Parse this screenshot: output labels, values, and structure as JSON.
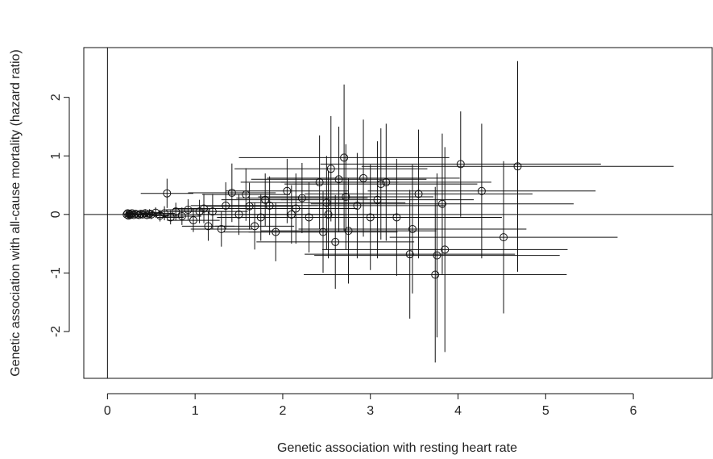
{
  "chart_data": {
    "type": "scatter",
    "title": "",
    "xlabel": "Genetic association with resting heart rate",
    "ylabel": "Genetic association with all-cause mortality (hazard ratio)",
    "xlim": [
      -0.27,
      6.9
    ],
    "ylim": [
      -2.8,
      2.85
    ],
    "x_ticks": [
      0,
      1,
      2,
      3,
      4,
      5,
      6
    ],
    "y_ticks": [
      -2,
      -1,
      0,
      1,
      2
    ],
    "grid": false,
    "reference_lines": {
      "x": 0,
      "y": 0
    },
    "error_bars": true,
    "points": [
      {
        "x": 0.22,
        "y": 0.0,
        "xerr": 0.02,
        "yerr": 0.03
      },
      {
        "x": 0.23,
        "y": 0.02,
        "xerr": 0.02,
        "yerr": 0.03
      },
      {
        "x": 0.24,
        "y": -0.02,
        "xerr": 0.02,
        "yerr": 0.03
      },
      {
        "x": 0.25,
        "y": 0.01,
        "xerr": 0.02,
        "yerr": 0.04
      },
      {
        "x": 0.26,
        "y": -0.01,
        "xerr": 0.03,
        "yerr": 0.04
      },
      {
        "x": 0.27,
        "y": 0.0,
        "xerr": 0.03,
        "yerr": 0.04
      },
      {
        "x": 0.28,
        "y": 0.02,
        "xerr": 0.03,
        "yerr": 0.04
      },
      {
        "x": 0.3,
        "y": -0.01,
        "xerr": 0.03,
        "yerr": 0.04
      },
      {
        "x": 0.32,
        "y": 0.01,
        "xerr": 0.04,
        "yerr": 0.05
      },
      {
        "x": 0.34,
        "y": 0.0,
        "xerr": 0.04,
        "yerr": 0.05
      },
      {
        "x": 0.36,
        "y": -0.01,
        "xerr": 0.05,
        "yerr": 0.05
      },
      {
        "x": 0.38,
        "y": 0.01,
        "xerr": 0.05,
        "yerr": 0.06
      },
      {
        "x": 0.4,
        "y": 0.0,
        "xerr": 0.05,
        "yerr": 0.06
      },
      {
        "x": 0.43,
        "y": 0.02,
        "xerr": 0.06,
        "yerr": 0.07
      },
      {
        "x": 0.45,
        "y": -0.01,
        "xerr": 0.06,
        "yerr": 0.07
      },
      {
        "x": 0.48,
        "y": 0.01,
        "xerr": 0.07,
        "yerr": 0.08
      },
      {
        "x": 0.5,
        "y": 0.0,
        "xerr": 0.07,
        "yerr": 0.08
      },
      {
        "x": 0.55,
        "y": 0.03,
        "xerr": 0.08,
        "yerr": 0.09
      },
      {
        "x": 0.6,
        "y": -0.02,
        "xerr": 0.1,
        "yerr": 0.1
      },
      {
        "x": 0.65,
        "y": 0.02,
        "xerr": 0.12,
        "yerr": 0.12
      },
      {
        "x": 0.68,
        "y": 0.36,
        "xerr": 0.3,
        "yerr": 0.25
      },
      {
        "x": 0.72,
        "y": -0.05,
        "xerr": 0.15,
        "yerr": 0.12
      },
      {
        "x": 0.78,
        "y": 0.05,
        "xerr": 0.2,
        "yerr": 0.15
      },
      {
        "x": 0.85,
        "y": -0.03,
        "xerr": 0.22,
        "yerr": 0.15
      },
      {
        "x": 0.92,
        "y": 0.08,
        "xerr": 0.25,
        "yerr": 0.18
      },
      {
        "x": 0.98,
        "y": -0.1,
        "xerr": 0.3,
        "yerr": 0.2
      },
      {
        "x": 1.05,
        "y": 0.05,
        "xerr": 0.3,
        "yerr": 0.2
      },
      {
        "x": 1.1,
        "y": 0.1,
        "xerr": 0.35,
        "yerr": 0.25
      },
      {
        "x": 1.15,
        "y": -0.2,
        "xerr": 0.3,
        "yerr": 0.25
      },
      {
        "x": 1.2,
        "y": 0.05,
        "xerr": 0.4,
        "yerr": 0.3
      },
      {
        "x": 1.3,
        "y": -0.25,
        "xerr": 0.35,
        "yerr": 0.3
      },
      {
        "x": 1.35,
        "y": 0.15,
        "xerr": 0.4,
        "yerr": 0.4
      },
      {
        "x": 1.42,
        "y": 0.37,
        "xerr": 0.5,
        "yerr": 0.5
      },
      {
        "x": 1.5,
        "y": 0.0,
        "xerr": 0.45,
        "yerr": 0.35
      },
      {
        "x": 1.58,
        "y": 0.34,
        "xerr": 0.5,
        "yerr": 0.45
      },
      {
        "x": 1.62,
        "y": 0.14,
        "xerr": 0.5,
        "yerr": 0.4
      },
      {
        "x": 1.68,
        "y": -0.2,
        "xerr": 0.45,
        "yerr": 0.4
      },
      {
        "x": 1.75,
        "y": -0.05,
        "xerr": 0.5,
        "yerr": 0.4
      },
      {
        "x": 1.8,
        "y": 0.25,
        "xerr": 0.5,
        "yerr": 0.45
      },
      {
        "x": 1.85,
        "y": 0.15,
        "xerr": 0.55,
        "yerr": 0.5
      },
      {
        "x": 1.92,
        "y": -0.3,
        "xerr": 0.6,
        "yerr": 0.5
      },
      {
        "x": 2.05,
        "y": 0.4,
        "xerr": 0.7,
        "yerr": 0.55
      },
      {
        "x": 2.1,
        "y": 0.0,
        "xerr": 0.6,
        "yerr": 0.5
      },
      {
        "x": 2.15,
        "y": 0.1,
        "xerr": 0.7,
        "yerr": 0.6
      },
      {
        "x": 2.22,
        "y": 0.28,
        "xerr": 0.75,
        "yerr": 0.6
      },
      {
        "x": 2.3,
        "y": -0.05,
        "xerr": 0.7,
        "yerr": 0.6
      },
      {
        "x": 2.42,
        "y": 0.55,
        "xerr": 0.9,
        "yerr": 0.8
      },
      {
        "x": 2.46,
        "y": -0.3,
        "xerr": 0.85,
        "yerr": 0.7
      },
      {
        "x": 2.5,
        "y": 0.2,
        "xerr": 0.9,
        "yerr": 0.8
      },
      {
        "x": 2.52,
        "y": 0.0,
        "xerr": 0.8,
        "yerr": 0.75
      },
      {
        "x": 2.55,
        "y": 0.78,
        "xerr": 1.1,
        "yerr": 0.9
      },
      {
        "x": 2.6,
        "y": -0.47,
        "xerr": 0.9,
        "yerr": 0.8
      },
      {
        "x": 2.64,
        "y": 0.6,
        "xerr": 1.0,
        "yerr": 0.9
      },
      {
        "x": 2.7,
        "y": 0.97,
        "xerr": 1.2,
        "yerr": 1.25
      },
      {
        "x": 2.72,
        "y": 0.3,
        "xerr": 1.0,
        "yerr": 0.9
      },
      {
        "x": 2.75,
        "y": -0.28,
        "xerr": 1.0,
        "yerr": 0.9
      },
      {
        "x": 2.85,
        "y": 0.15,
        "xerr": 1.0,
        "yerr": 0.9
      },
      {
        "x": 2.92,
        "y": 0.62,
        "xerr": 1.1,
        "yerr": 1.0
      },
      {
        "x": 3.0,
        "y": -0.05,
        "xerr": 1.0,
        "yerr": 0.9
      },
      {
        "x": 3.08,
        "y": 0.25,
        "xerr": 1.1,
        "yerr": 1.0
      },
      {
        "x": 3.12,
        "y": 0.52,
        "xerr": 1.1,
        "yerr": 0.95
      },
      {
        "x": 3.18,
        "y": 0.55,
        "xerr": 1.2,
        "yerr": 1.0
      },
      {
        "x": 3.3,
        "y": -0.05,
        "xerr": 1.2,
        "yerr": 1.0
      },
      {
        "x": 3.45,
        "y": -0.68,
        "xerr": 1.2,
        "yerr": 1.1
      },
      {
        "x": 3.48,
        "y": -0.25,
        "xerr": 1.3,
        "yerr": 1.1
      },
      {
        "x": 3.55,
        "y": 0.35,
        "xerr": 1.3,
        "yerr": 1.1
      },
      {
        "x": 3.74,
        "y": -1.03,
        "xerr": 1.5,
        "yerr": 1.5
      },
      {
        "x": 3.76,
        "y": -0.7,
        "xerr": 1.4,
        "yerr": 1.4
      },
      {
        "x": 3.82,
        "y": 0.18,
        "xerr": 1.5,
        "yerr": 1.2
      },
      {
        "x": 3.85,
        "y": -0.6,
        "xerr": 1.4,
        "yerr": 1.75
      },
      {
        "x": 4.03,
        "y": 0.86,
        "xerr": 1.6,
        "yerr": 0.9
      },
      {
        "x": 4.27,
        "y": 0.4,
        "xerr": 1.3,
        "yerr": 1.15
      },
      {
        "x": 4.52,
        "y": -0.39,
        "xerr": 1.3,
        "yerr": 1.3
      },
      {
        "x": 4.68,
        "y": 0.82,
        "xerr": 1.78,
        "yerr": 1.8
      }
    ]
  }
}
